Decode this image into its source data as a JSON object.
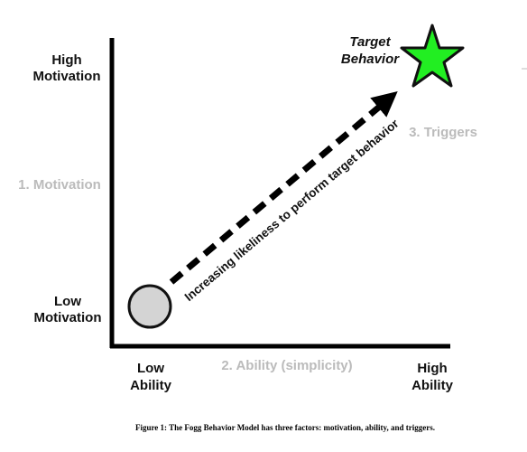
{
  "y_axis": {
    "high_line1": "High",
    "high_line2": "Motivation",
    "factor_label": "1. Motivation",
    "low_line1": "Low",
    "low_line2": "Motivation"
  },
  "x_axis": {
    "low_line1": "Low",
    "low_line2": "Ability",
    "factor_label": "2. Ability (simplicity)",
    "high_line1": "High",
    "high_line2": "Ability"
  },
  "target": {
    "line1": "Target",
    "line2": "Behavior"
  },
  "triggers_label": "3. Triggers",
  "arrow_label": "Increasing likeliness to perform target behavior",
  "caption": "Figure 1: The Fogg Behavior Model has three factors: motivation, ability, and triggers.",
  "colors": {
    "factor_gray": "#bbbbbb",
    "star_fill": "#22ee22",
    "start_circle_fill": "#d4d4d4",
    "axis": "#000000"
  },
  "icons": {
    "start": "circle-icon",
    "goal": "star-icon"
  }
}
